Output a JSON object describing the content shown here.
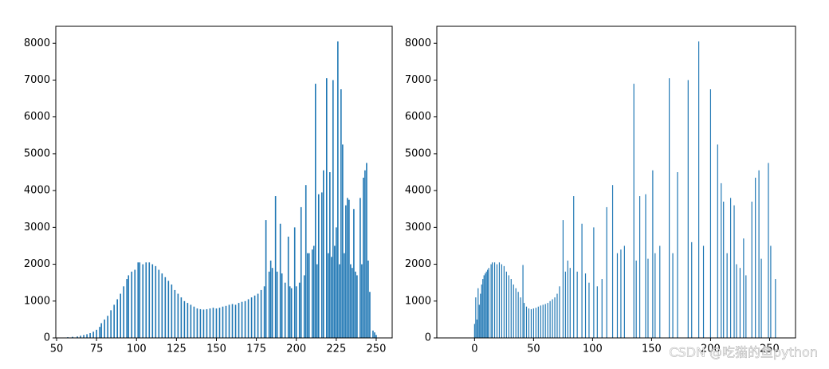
{
  "chart_data": [
    {
      "type": "bar",
      "color": "#1f77b4",
      "x": [
        57,
        60,
        63,
        65,
        67,
        69,
        71,
        73,
        75,
        77,
        78,
        80,
        82,
        84,
        86,
        88,
        90,
        92,
        94,
        95,
        97,
        99,
        101,
        102,
        104,
        106,
        108,
        110,
        112,
        114,
        116,
        118,
        120,
        122,
        124,
        126,
        128,
        130,
        132,
        134,
        136,
        138,
        140,
        142,
        144,
        146,
        148,
        150,
        152,
        154,
        156,
        158,
        160,
        162,
        164,
        166,
        168,
        170,
        172,
        174,
        176,
        178,
        180,
        181,
        183,
        184,
        185,
        187,
        188,
        190,
        191,
        193,
        195,
        196,
        197,
        199,
        200,
        202,
        203,
        205,
        206,
        207,
        208,
        210,
        211,
        212,
        213,
        214,
        216,
        217,
        219,
        220,
        221,
        222,
        223,
        224,
        225,
        226,
        227,
        228,
        229,
        230,
        231,
        232,
        233,
        234,
        235,
        236,
        237,
        238,
        240,
        241,
        242,
        243,
        244,
        245,
        246,
        248,
        249,
        250
      ],
      "values": [
        20,
        30,
        40,
        60,
        80,
        100,
        130,
        170,
        220,
        300,
        400,
        500,
        600,
        750,
        900,
        1050,
        1200,
        1400,
        1600,
        1700,
        1800,
        1850,
        2050,
        2050,
        2000,
        2050,
        2050,
        2000,
        1950,
        1850,
        1750,
        1650,
        1550,
        1450,
        1300,
        1200,
        1100,
        1000,
        950,
        900,
        850,
        800,
        780,
        770,
        780,
        800,
        820,
        800,
        820,
        850,
        870,
        900,
        920,
        900,
        950,
        980,
        1000,
        1050,
        1100,
        1150,
        1200,
        1300,
        1400,
        3200,
        1800,
        2100,
        1900,
        3850,
        1800,
        3100,
        1750,
        1500,
        2750,
        1400,
        1350,
        3000,
        1400,
        1500,
        3550,
        1700,
        4150,
        2300,
        2300,
        2400,
        2500,
        6900,
        2000,
        3900,
        3950,
        4550,
        7050,
        2300,
        4500,
        2200,
        7000,
        2500,
        3000,
        8050,
        2000,
        6750,
        5250,
        2300,
        3600,
        3800,
        3750,
        2000,
        1900,
        3500,
        1800,
        1700,
        3800,
        2000,
        4350,
        4550,
        4750,
        2100,
        1250,
        200,
        150,
        80
      ],
      "xlim": [
        49.5,
        260
      ],
      "ylim": [
        0,
        8460
      ],
      "xticks": [
        50,
        75,
        100,
        125,
        150,
        175,
        200,
        225,
        250
      ],
      "yticks": [
        0,
        1000,
        2000,
        3000,
        4000,
        5000,
        6000,
        7000,
        8000
      ]
    },
    {
      "type": "bar",
      "color": "#1f77b4",
      "x": [
        0,
        1,
        2,
        3,
        4,
        5,
        6,
        7,
        8,
        9,
        10,
        11,
        12,
        14,
        15,
        17,
        19,
        21,
        23,
        25,
        27,
        29,
        31,
        33,
        35,
        37,
        39,
        41,
        42,
        44,
        46,
        48,
        50,
        52,
        54,
        56,
        58,
        60,
        62,
        64,
        66,
        68,
        70,
        72,
        75,
        77,
        79,
        81,
        84,
        87,
        91,
        94,
        97,
        101,
        104,
        108,
        112,
        117,
        121,
        124,
        127,
        135,
        137,
        140,
        145,
        147,
        151,
        153,
        157,
        165,
        168,
        172,
        181,
        184,
        190,
        194,
        200,
        206,
        209,
        211,
        214,
        217,
        220,
        222,
        225,
        228,
        230,
        235,
        238,
        241,
        243,
        249,
        251,
        255
      ],
      "values": [
        380,
        1100,
        500,
        1350,
        900,
        1200,
        1450,
        1600,
        1700,
        1750,
        1800,
        1850,
        1900,
        2000,
        2050,
        2050,
        2000,
        2050,
        2000,
        1950,
        1800,
        1700,
        1600,
        1450,
        1350,
        1250,
        1100,
        1980,
        950,
        850,
        800,
        780,
        800,
        820,
        850,
        880,
        900,
        920,
        950,
        1000,
        1050,
        1100,
        1200,
        1400,
        3200,
        1800,
        2100,
        1900,
        3850,
        1800,
        3100,
        1750,
        1500,
        3000,
        1400,
        1600,
        3550,
        4150,
        2300,
        2400,
        2500,
        6900,
        2100,
        3850,
        3900,
        2150,
        4550,
        2300,
        2500,
        7050,
        2300,
        4500,
        7000,
        2600,
        8050,
        2500,
        6750,
        5250,
        4200,
        3700,
        2300,
        3800,
        3600,
        2000,
        1900,
        2700,
        1700,
        3700,
        4350,
        4550,
        2150,
        4750,
        2500,
        1600
      ],
      "xlim": [
        -32,
        272
      ],
      "ylim": [
        0,
        8460
      ],
      "xticks": [
        0,
        50,
        100,
        150,
        200,
        250
      ],
      "yticks": [
        0,
        1000,
        2000,
        3000,
        4000,
        5000,
        6000,
        7000,
        8000
      ]
    }
  ],
  "watermark": "CSDN @吃猫的鱼python"
}
